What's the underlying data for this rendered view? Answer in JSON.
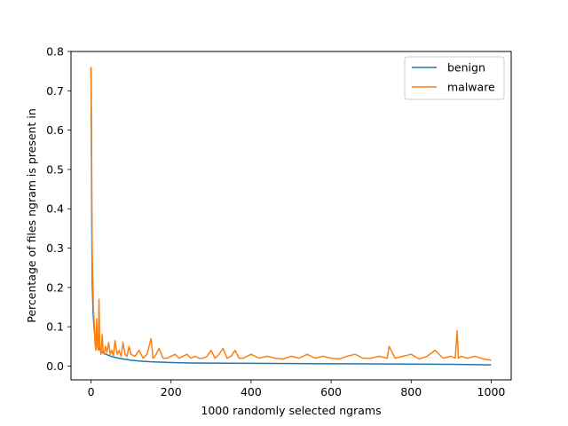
{
  "chart_data": {
    "type": "line",
    "xlabel": "1000 randomly selected ngrams",
    "ylabel": "Percentage of files ngram is present in",
    "xlim": [
      -50,
      1050
    ],
    "ylim": [
      -0.035,
      0.8
    ],
    "xticks": [
      0,
      200,
      400,
      600,
      800,
      1000
    ],
    "yticks": [
      0.0,
      0.1,
      0.2,
      0.3,
      0.4,
      0.5,
      0.6,
      0.7,
      0.8
    ],
    "grid": false,
    "legend": "top-right",
    "series": [
      {
        "name": "benign",
        "color": "#1f77b4",
        "x": [
          0,
          1,
          2,
          3,
          5,
          8,
          12,
          16,
          20,
          25,
          30,
          40,
          50,
          60,
          70,
          80,
          100,
          120,
          150,
          200,
          250,
          300,
          400,
          500,
          600,
          700,
          800,
          900,
          1000
        ],
        "y": [
          0.76,
          0.55,
          0.35,
          0.22,
          0.14,
          0.09,
          0.065,
          0.052,
          0.045,
          0.038,
          0.034,
          0.029,
          0.025,
          0.022,
          0.02,
          0.018,
          0.015,
          0.013,
          0.011,
          0.009,
          0.008,
          0.0075,
          0.007,
          0.0065,
          0.006,
          0.0055,
          0.005,
          0.0045,
          0.003
        ]
      },
      {
        "name": "malware",
        "color": "#ff7f0e",
        "x": [
          0,
          1,
          2,
          3,
          4,
          5,
          6,
          8,
          10,
          12,
          14,
          16,
          18,
          20,
          22,
          25,
          28,
          30,
          33,
          36,
          40,
          44,
          48,
          52,
          56,
          60,
          65,
          70,
          75,
          80,
          85,
          90,
          95,
          100,
          110,
          120,
          130,
          140,
          150,
          155,
          160,
          170,
          180,
          190,
          200,
          210,
          220,
          230,
          240,
          250,
          260,
          270,
          280,
          290,
          300,
          310,
          320,
          330,
          340,
          350,
          360,
          370,
          380,
          390,
          400,
          420,
          440,
          460,
          480,
          500,
          520,
          540,
          560,
          580,
          600,
          620,
          640,
          660,
          680,
          700,
          720,
          740,
          745,
          760,
          780,
          800,
          820,
          840,
          860,
          880,
          900,
          910,
          915,
          918,
          925,
          940,
          960,
          980,
          1000
        ],
        "y": [
          0.76,
          0.65,
          0.45,
          0.3,
          0.23,
          0.2,
          0.15,
          0.11,
          0.06,
          0.04,
          0.12,
          0.05,
          0.04,
          0.17,
          0.05,
          0.03,
          0.08,
          0.04,
          0.03,
          0.05,
          0.035,
          0.06,
          0.03,
          0.04,
          0.025,
          0.065,
          0.03,
          0.04,
          0.025,
          0.06,
          0.03,
          0.025,
          0.05,
          0.03,
          0.025,
          0.04,
          0.02,
          0.03,
          0.07,
          0.02,
          0.025,
          0.045,
          0.02,
          0.02,
          0.025,
          0.03,
          0.02,
          0.025,
          0.03,
          0.02,
          0.025,
          0.02,
          0.02,
          0.025,
          0.04,
          0.02,
          0.03,
          0.045,
          0.02,
          0.025,
          0.04,
          0.02,
          0.02,
          0.025,
          0.03,
          0.02,
          0.025,
          0.02,
          0.018,
          0.025,
          0.02,
          0.03,
          0.02,
          0.025,
          0.02,
          0.018,
          0.025,
          0.03,
          0.02,
          0.02,
          0.025,
          0.02,
          0.05,
          0.02,
          0.025,
          0.03,
          0.018,
          0.025,
          0.04,
          0.02,
          0.025,
          0.02,
          0.09,
          0.02,
          0.025,
          0.02,
          0.025,
          0.018,
          0.015
        ]
      }
    ]
  }
}
